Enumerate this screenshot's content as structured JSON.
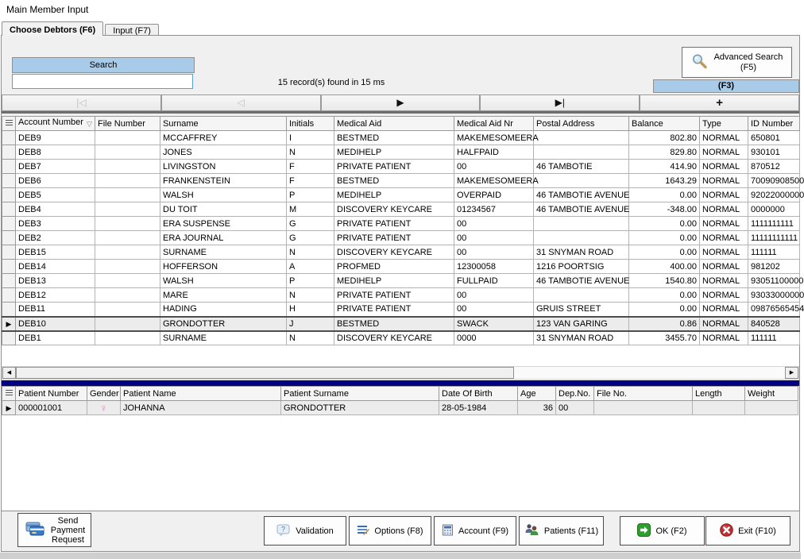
{
  "window": {
    "title": "Main Member Input"
  },
  "tabs": {
    "choose_debtors": "Choose Debtors (F6)",
    "input": "Input (F7)"
  },
  "search": {
    "header": "Search",
    "value": "",
    "status": "15 record(s) found in 15 ms"
  },
  "advanced_search_button": {
    "line1": "Advanced Search",
    "line2": "(F5)"
  },
  "f3_button": "(F3)",
  "nav_buttons": [
    {
      "name": "first",
      "glyph": "|◁",
      "enabled": false
    },
    {
      "name": "previous",
      "glyph": "◁",
      "enabled": false
    },
    {
      "name": "next",
      "glyph": "▶",
      "enabled": true
    },
    {
      "name": "last",
      "glyph": "▶|",
      "enabled": true
    },
    {
      "name": "add",
      "glyph": "+",
      "enabled": true
    }
  ],
  "icons": {
    "scroll_left": "◀",
    "scroll_right": "▶",
    "sort_desc": "▽",
    "selected_row_marker": "▶",
    "female_symbol": "♀"
  },
  "debtors_grid": {
    "columns": [
      "Account Number",
      "File Number",
      "Surname",
      "Initials",
      "Medical Aid",
      "Medical Aid Nr",
      "Postal Address",
      "Balance",
      "Type",
      "ID Number"
    ],
    "sort_column": "Account Number",
    "sort_direction": "desc",
    "selected_row_account": "DEB10",
    "rows": [
      {
        "account": "DEB9",
        "file_number": "",
        "surname": "MCCAFFREY",
        "initials": "I",
        "medical_aid": "BESTMED",
        "medical_aid_nr": "MAKEMESOMEERA",
        "postal_address": "",
        "balance": "802.80",
        "type": "NORMAL",
        "id_number": "650801"
      },
      {
        "account": "DEB8",
        "file_number": "",
        "surname": "JONES",
        "initials": "N",
        "medical_aid": "MEDIHELP",
        "medical_aid_nr": "HALFPAID",
        "postal_address": "",
        "balance": "829.80",
        "type": "NORMAL",
        "id_number": "930101"
      },
      {
        "account": "DEB7",
        "file_number": "",
        "surname": "LIVINGSTON",
        "initials": "F",
        "medical_aid": "PRIVATE PATIENT",
        "medical_aid_nr": "00",
        "postal_address": "46 TAMBOTIE",
        "balance": "414.90",
        "type": "NORMAL",
        "id_number": "870512"
      },
      {
        "account": "DEB6",
        "file_number": "",
        "surname": "FRANKENSTEIN",
        "initials": "F",
        "medical_aid": "BESTMED",
        "medical_aid_nr": "MAKEMESOMEERA",
        "postal_address": "",
        "balance": "1643.29",
        "type": "NORMAL",
        "id_number": "70090908500"
      },
      {
        "account": "DEB5",
        "file_number": "",
        "surname": "WALSH",
        "initials": "P",
        "medical_aid": "MEDIHELP",
        "medical_aid_nr": "OVERPAID",
        "postal_address": "46 TAMBOTIE AVENUE",
        "balance": "0.00",
        "type": "NORMAL",
        "id_number": "92022000000"
      },
      {
        "account": "DEB4",
        "file_number": "",
        "surname": "DU TOIT",
        "initials": "M",
        "medical_aid": "DISCOVERY KEYCARE",
        "medical_aid_nr": "01234567",
        "postal_address": "46 TAMBOTIE AVENUE",
        "balance": "-348.00",
        "type": "NORMAL",
        "id_number": "0000000"
      },
      {
        "account": "DEB3",
        "file_number": "",
        "surname": "ERA SUSPENSE",
        "initials": "G",
        "medical_aid": "PRIVATE PATIENT",
        "medical_aid_nr": "00",
        "postal_address": "",
        "balance": "0.00",
        "type": "NORMAL",
        "id_number": "1111111111"
      },
      {
        "account": "DEB2",
        "file_number": "",
        "surname": "ERA JOURNAL",
        "initials": "G",
        "medical_aid": "PRIVATE PATIENT",
        "medical_aid_nr": "00",
        "postal_address": "",
        "balance": "0.00",
        "type": "NORMAL",
        "id_number": "11111111111"
      },
      {
        "account": "DEB15",
        "file_number": "",
        "surname": "SURNAME",
        "initials": "N",
        "medical_aid": "DISCOVERY KEYCARE",
        "medical_aid_nr": "00",
        "postal_address": "31 SNYMAN ROAD",
        "balance": "0.00",
        "type": "NORMAL",
        "id_number": "111111"
      },
      {
        "account": "DEB14",
        "file_number": "",
        "surname": "HOFFERSON",
        "initials": "A",
        "medical_aid": "PROFMED",
        "medical_aid_nr": "12300058",
        "postal_address": "1216 POORTSIG",
        "balance": "400.00",
        "type": "NORMAL",
        "id_number": "981202"
      },
      {
        "account": "DEB13",
        "file_number": "",
        "surname": "WALSH",
        "initials": "P",
        "medical_aid": "MEDIHELP",
        "medical_aid_nr": "FULLPAID",
        "postal_address": "46 TAMBOTIE AVENUE",
        "balance": "1540.80",
        "type": "NORMAL",
        "id_number": "93051100000"
      },
      {
        "account": "DEB12",
        "file_number": "",
        "surname": "MARE",
        "initials": "N",
        "medical_aid": "PRIVATE PATIENT",
        "medical_aid_nr": "00",
        "postal_address": "",
        "balance": "0.00",
        "type": "NORMAL",
        "id_number": "93033000000"
      },
      {
        "account": "DEB11",
        "file_number": "",
        "surname": "HADING",
        "initials": "H",
        "medical_aid": "PRIVATE PATIENT",
        "medical_aid_nr": "00",
        "postal_address": "GRUIS STREET",
        "balance": "0.00",
        "type": "NORMAL",
        "id_number": "09876565454"
      },
      {
        "account": "DEB10",
        "file_number": "",
        "surname": "GRONDOTTER",
        "initials": "J",
        "medical_aid": "BESTMED",
        "medical_aid_nr": "SWACK",
        "postal_address": "123 VAN GARING",
        "balance": "0.86",
        "type": "NORMAL",
        "id_number": "840528"
      },
      {
        "account": "DEB1",
        "file_number": "",
        "surname": "SURNAME",
        "initials": "N",
        "medical_aid": "DISCOVERY KEYCARE",
        "medical_aid_nr": "0000",
        "postal_address": "31 SNYMAN ROAD",
        "balance": "3455.70",
        "type": "NORMAL",
        "id_number": "111111"
      }
    ]
  },
  "patients_grid": {
    "columns": [
      "Patient Number",
      "Gender",
      "Patient Name",
      "Patient Surname",
      "Date Of Birth",
      "Age",
      "Dep.No.",
      "File No.",
      "Length",
      "Weight"
    ],
    "rows": [
      {
        "patient_number": "000001001",
        "gender": "female",
        "patient_name": "JOHANNA",
        "patient_surname": "GRONDOTTER",
        "date_of_birth": "28-05-1984",
        "age": "36",
        "dep_no": "00",
        "file_no": "",
        "length": "",
        "weight": ""
      }
    ]
  },
  "footer": {
    "send_payment_lines": [
      "Send",
      "Payment",
      "Request"
    ],
    "validation": "Validation",
    "options": "Options (F8)",
    "account": "Account (F9)",
    "patients": "Patients (F11)",
    "ok": "OK (F2)",
    "exit": "Exit (F10)"
  },
  "colors": {
    "accent_blue": "#a9cbea",
    "input_border_blue": "#56a0d3",
    "splitter_navy": "#000080",
    "ok_green": "#2e9e2e",
    "exit_red": "#c03030",
    "female_pink": "#ee7ad8"
  }
}
